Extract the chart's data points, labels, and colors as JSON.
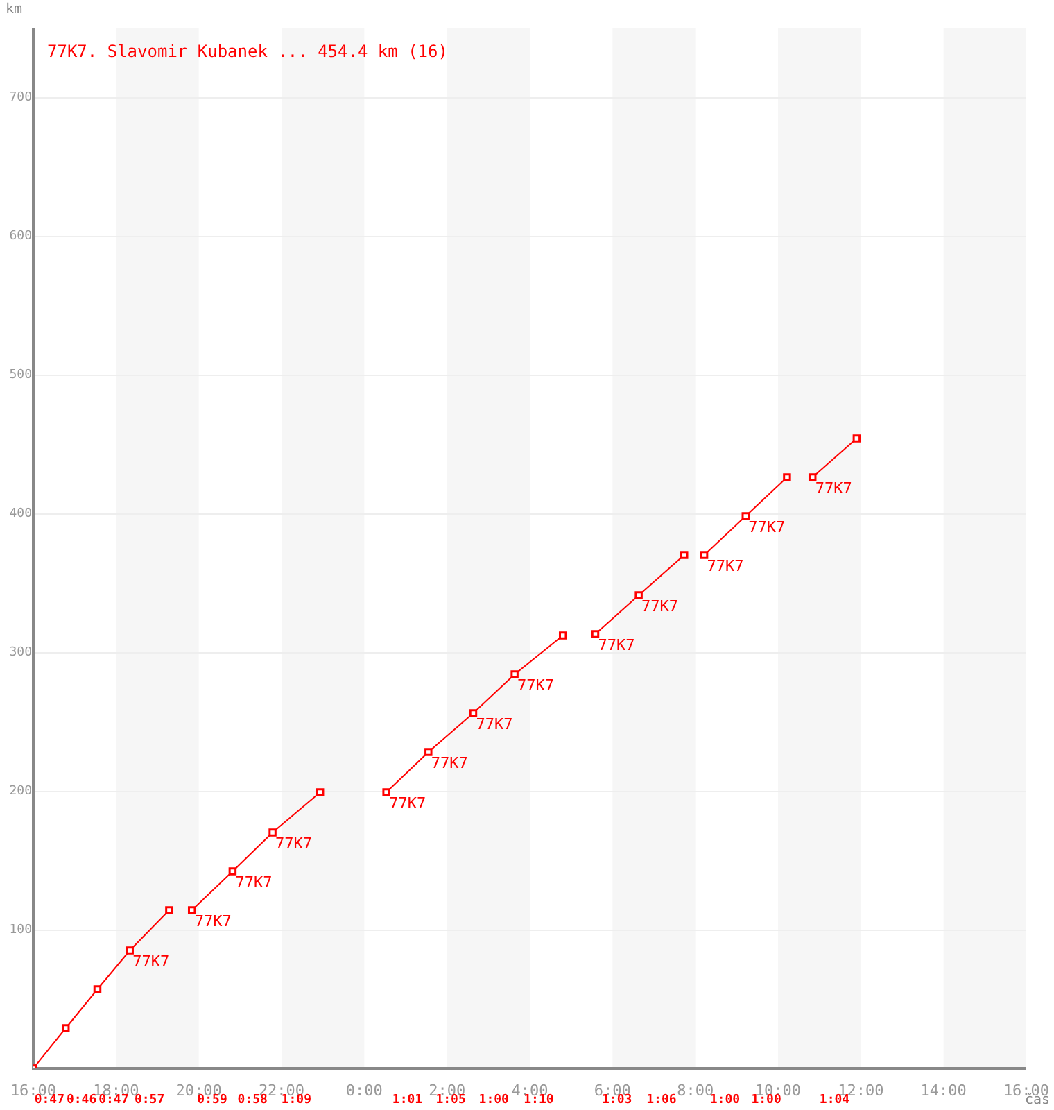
{
  "chart_data": {
    "type": "line",
    "title": "77K7. Slavomir Kubanek ... 454.4 km (16)",
    "xlabel": "čas",
    "ylabel": "km",
    "xlim": [
      "2000-01-01T16:00",
      "2000-01-02T16:00"
    ],
    "xticks": [
      {
        "value": "2000-01-01T16:00",
        "label": "16:00"
      },
      {
        "value": "2000-01-01T18:00",
        "label": "18:00"
      },
      {
        "value": "2000-01-01T20:00",
        "label": "20:00"
      },
      {
        "value": "2000-01-01T22:00",
        "label": "22:00"
      },
      {
        "value": "2000-01-02T00:00",
        "label": "0:00"
      },
      {
        "value": "2000-01-02T02:00",
        "label": "2:00"
      },
      {
        "value": "2000-01-02T04:00",
        "label": "4:00"
      },
      {
        "value": "2000-01-02T06:00",
        "label": "6:00"
      },
      {
        "value": "2000-01-02T08:00",
        "label": "8:00"
      },
      {
        "value": "2000-01-02T10:00",
        "label": "10:00"
      },
      {
        "value": "2000-01-02T12:00",
        "label": "12:00"
      },
      {
        "value": "2000-01-02T14:00",
        "label": "14:00"
      },
      {
        "value": "2000-01-02T16:00",
        "label": "16:00"
      }
    ],
    "ylim": [
      0,
      750
    ],
    "yticks": [
      100,
      200,
      300,
      400,
      500,
      600,
      700
    ],
    "grid": "y",
    "legend": false,
    "marker": "square",
    "bands": [
      {
        "axis": "x",
        "from": "2000-01-01T18:00",
        "to": "2000-01-01T20:00",
        "color": "#f6f6f6"
      },
      {
        "axis": "x",
        "from": "2000-01-01T22:00",
        "to": "2000-01-02T00:00",
        "color": "#f6f6f6"
      },
      {
        "axis": "x",
        "from": "2000-01-02T02:00",
        "to": "2000-01-02T04:00",
        "color": "#f6f6f6"
      },
      {
        "axis": "x",
        "from": "2000-01-02T06:00",
        "to": "2000-01-02T08:00",
        "color": "#f6f6f6"
      },
      {
        "axis": "x",
        "from": "2000-01-02T10:00",
        "to": "2000-01-02T12:00",
        "color": "#f6f6f6"
      },
      {
        "axis": "x",
        "from": "2000-01-02T14:00",
        "to": "2000-01-02T16:00",
        "color": "#f6f6f6"
      }
    ],
    "series": [
      {
        "color": "#ff0000",
        "x": [
          "2000-01-01T16:00",
          "2000-01-01T16:47",
          "2000-01-01T17:33",
          "2000-01-01T18:20",
          "2000-01-01T19:17"
        ],
        "values": [
          0,
          29,
          57,
          85,
          114
        ]
      },
      {
        "color": "#ff0000",
        "x": [
          "2000-01-01T19:50",
          "2000-01-01T20:49",
          "2000-01-01T21:47",
          "2000-01-01T22:56"
        ],
        "values": [
          114,
          142,
          170,
          199
        ]
      },
      {
        "color": "#ff0000",
        "x": [
          "2000-01-02T00:32",
          "2000-01-02T01:33",
          "2000-01-02T02:38",
          "2000-01-02T03:38",
          "2000-01-02T04:48"
        ],
        "values": [
          199,
          228,
          256,
          284,
          312
        ]
      },
      {
        "color": "#ff0000",
        "x": [
          "2000-01-02T05:35",
          "2000-01-02T06:38",
          "2000-01-02T07:44"
        ],
        "values": [
          313,
          341,
          370
        ]
      },
      {
        "color": "#ff0000",
        "x": [
          "2000-01-02T08:13",
          "2000-01-02T09:13",
          "2000-01-02T10:13"
        ],
        "values": [
          370,
          398,
          426
        ]
      },
      {
        "color": "#ff0000",
        "x": [
          "2000-01-02T10:50",
          "2000-01-02T11:54"
        ],
        "values": [
          426,
          454
        ]
      }
    ],
    "annotations": [
      {
        "text": "77K7",
        "x": "2000-01-01T18:20",
        "y": 85
      },
      {
        "text": "77K7",
        "x": "2000-01-01T19:50",
        "y": 114
      },
      {
        "text": "77K7",
        "x": "2000-01-01T20:49",
        "y": 142
      },
      {
        "text": "77K7",
        "x": "2000-01-01T21:47",
        "y": 170
      },
      {
        "text": "77K7",
        "x": "2000-01-02T00:32",
        "y": 199
      },
      {
        "text": "77K7",
        "x": "2000-01-02T01:33",
        "y": 228
      },
      {
        "text": "77K7",
        "x": "2000-01-02T02:38",
        "y": 256
      },
      {
        "text": "77K7",
        "x": "2000-01-02T03:38",
        "y": 284
      },
      {
        "text": "77K7",
        "x": "2000-01-02T05:35",
        "y": 313
      },
      {
        "text": "77K7",
        "x": "2000-01-02T06:38",
        "y": 341
      },
      {
        "text": "77K7",
        "x": "2000-01-02T08:13",
        "y": 370
      },
      {
        "text": "77K7",
        "x": "2000-01-02T09:13",
        "y": 398
      },
      {
        "text": "77K7",
        "x": "2000-01-02T10:50",
        "y": 426
      },
      "0:47",
      "0:46",
      "0:47",
      "0:57",
      "0:59",
      "0:58",
      "1:09",
      "1:01",
      "1:05",
      "1:00",
      "1:10",
      "1:03",
      "1:06",
      "1:00",
      "1:00",
      "1:04"
    ]
  }
}
